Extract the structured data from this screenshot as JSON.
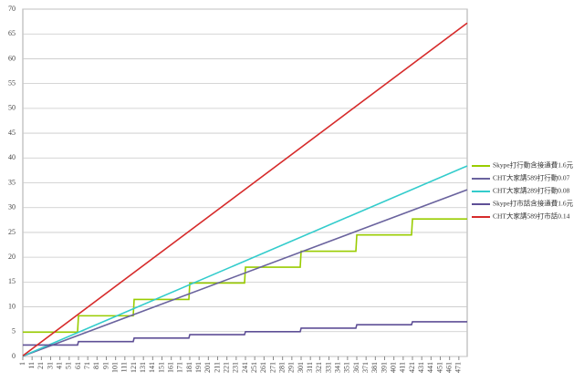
{
  "chart_data": {
    "type": "line",
    "xlim": [
      1,
      480
    ],
    "xticks": [
      1,
      11,
      21,
      31,
      41,
      51,
      61,
      71,
      81,
      91,
      101,
      111,
      121,
      131,
      141,
      151,
      161,
      171,
      181,
      191,
      201,
      211,
      221,
      231,
      241,
      251,
      261,
      271,
      281,
      291,
      301,
      311,
      321,
      331,
      341,
      351,
      361,
      371,
      381,
      391,
      401,
      411,
      421,
      431,
      441,
      451,
      461,
      471
    ],
    "ylim": [
      0,
      70
    ],
    "yticks": [
      0,
      5,
      10,
      15,
      20,
      25,
      30,
      35,
      40,
      45,
      50,
      55,
      60,
      65,
      70
    ],
    "grid": true,
    "legend": "right",
    "series": [
      {
        "name": "Skype打行動含接通費1.6元",
        "color": "#99cc00",
        "x": [
          1,
          60,
          61,
          120,
          121,
          180,
          181,
          240,
          241,
          300,
          301,
          360,
          361,
          420,
          421,
          480
        ],
        "values": [
          4.9,
          4.9,
          8.2,
          8.2,
          11.5,
          11.5,
          14.8,
          14.8,
          18.0,
          18.0,
          21.2,
          21.2,
          24.5,
          24.5,
          27.7,
          27.7
        ]
      },
      {
        "name": "CHT大家講589打行動0.07",
        "color": "#6a639e",
        "x": [
          1,
          480
        ],
        "values": [
          0.07,
          33.6
        ]
      },
      {
        "name": "CHT大家講289打行動0.08",
        "color": "#33cccc",
        "x": [
          1,
          480
        ],
        "values": [
          0.08,
          38.4
        ]
      },
      {
        "name": "Skype打市話含接通費1.6元",
        "color": "#5e4f96",
        "x": [
          1,
          60,
          61,
          120,
          121,
          180,
          181,
          240,
          241,
          300,
          301,
          360,
          361,
          420,
          421,
          480
        ],
        "values": [
          2.3,
          2.3,
          3.0,
          3.0,
          3.7,
          3.7,
          4.4,
          4.4,
          5.0,
          5.0,
          5.7,
          5.7,
          6.4,
          6.4,
          7.0,
          7.0
        ]
      },
      {
        "name": "CHT大家講589打市話0.14",
        "color": "#d62b2b",
        "x": [
          1,
          480
        ],
        "values": [
          0.14,
          67.2
        ]
      }
    ]
  }
}
